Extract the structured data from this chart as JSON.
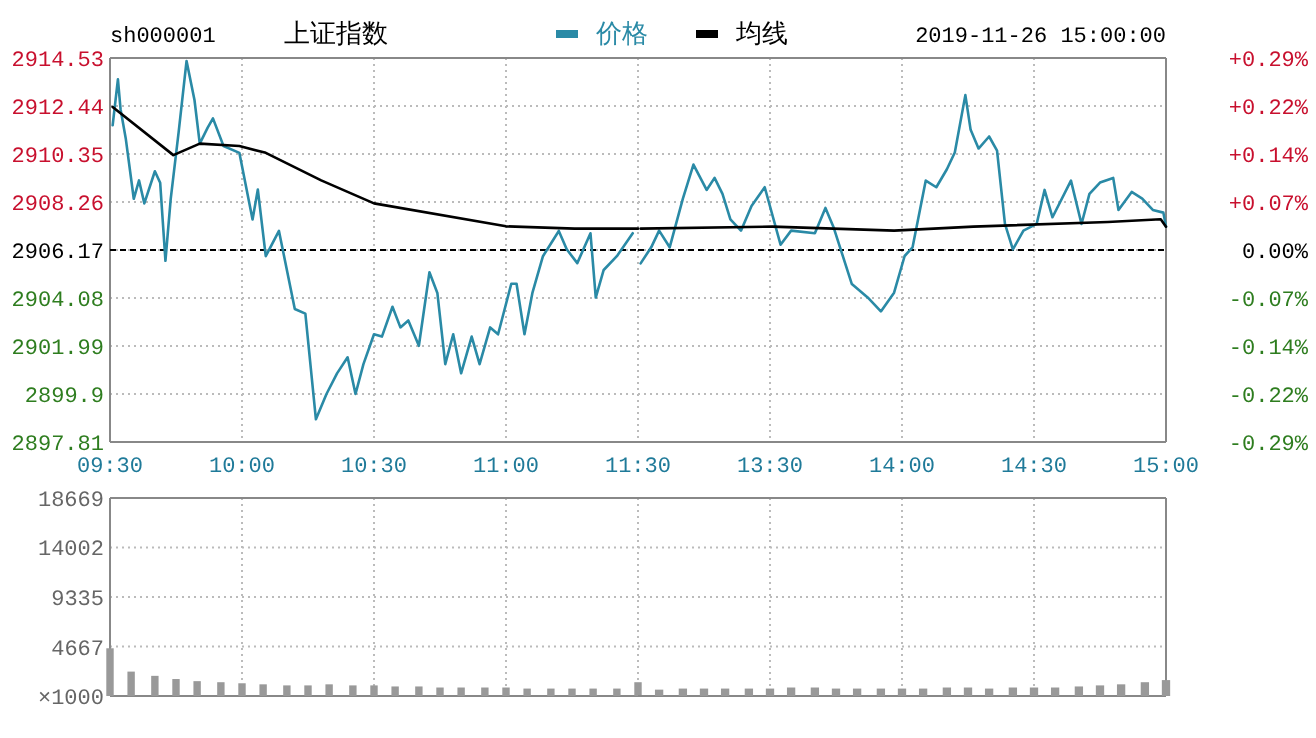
{
  "chart_data": [
    {
      "type": "line",
      "title": "上证指数",
      "subtitle": "sh000001",
      "legend": "top",
      "grid": true,
      "xlim": [
        9.5,
        11.5
      ],
      "xticks": [
        {
          "value": 9.5,
          "label": "09:30"
        },
        {
          "value": 10,
          "label": "10:00"
        },
        {
          "value": 10.5,
          "label": "10:30"
        },
        {
          "value": 11,
          "label": "11:00"
        },
        {
          "value": 11.5,
          "label": "11:30"
        }
      ],
      "ylim": [
        2897.81,
        2914.53
      ],
      "yticks": [
        2897.81,
        2899.9,
        2901.99,
        2904.08,
        2906.17,
        2908.26,
        2910.35,
        2912.44,
        2914.53
      ],
      "ref_lines": [
        {
          "axis": "y",
          "value": 2906.17,
          "color": "#000000",
          "line_style": "dashed"
        }
      ],
      "series": [
        {
          "name": "价格",
          "color": "#2a8aa6",
          "x": [
            9.51,
            9.53,
            9.54,
            9.56,
            9.59,
            9.61,
            9.63,
            9.67,
            9.69,
            9.71,
            9.73,
            9.76,
            9.79,
            9.82,
            9.84,
            9.87,
            9.89,
            9.93,
            9.99,
            10.04,
            10.06,
            10.09,
            10.14,
            10.2,
            10.24,
            10.28,
            10.32,
            10.36,
            10.4,
            10.43,
            10.46,
            10.5,
            10.53,
            10.57,
            10.6,
            10.63,
            10.67,
            10.71,
            10.74,
            10.77,
            10.8,
            10.83,
            10.87,
            10.9,
            10.94,
            10.97,
            11.02,
            11.04,
            11.07,
            11.1,
            11.14,
            11.2,
            11.23,
            11.27,
            11.32,
            11.34,
            11.37,
            11.42,
            11.48
          ],
          "values": [
            2911.6,
            2913.6,
            2912.3,
            2911.0,
            2908.4,
            2909.2,
            2908.2,
            2909.6,
            2909.1,
            2905.7,
            2908.4,
            2911.3,
            2914.4,
            2912.7,
            2910.8,
            2911.5,
            2911.9,
            2910.7,
            2910.4,
            2907.5,
            2908.8,
            2905.9,
            2907.0,
            2903.6,
            2903.4,
            2898.8,
            2899.9,
            2900.8,
            2901.5,
            2899.9,
            2901.2,
            2902.5,
            2902.4,
            2903.7,
            2902.8,
            2903.1,
            2902.0,
            2905.2,
            2904.3,
            2901.2,
            2902.5,
            2900.8,
            2902.4,
            2901.2,
            2902.8,
            2902.5,
            2904.7,
            2904.7,
            2902.5,
            2904.3,
            2905.9,
            2907.0,
            2906.2,
            2905.6,
            2906.9,
            2904.1,
            2905.3,
            2905.9,
            2906.9
          ]
        },
        {
          "name": "均线",
          "color": "#000000",
          "x": [
            9.51,
            9.74,
            9.84,
            9.99,
            10.09,
            10.3,
            10.5,
            11.0,
            11.26,
            11.5
          ],
          "values": [
            2912.4,
            2910.3,
            2910.8,
            2910.7,
            2910.4,
            2909.2,
            2908.2,
            2907.2,
            2907.1,
            2907.1
          ]
        }
      ]
    },
    {
      "type": "line",
      "annotations": [
        "2019-11-26 15:00:00"
      ],
      "grid": true,
      "xlim": [
        13,
        15
      ],
      "xticks": [
        {
          "value": 13.5,
          "label": "13:30"
        },
        {
          "value": 14,
          "label": "14:00"
        },
        {
          "value": 14.5,
          "label": "14:30"
        },
        {
          "value": 15,
          "label": "15:00"
        }
      ],
      "y2lim": [
        -0.2876,
        0.2876
      ],
      "y2ticks": [
        {
          "value": -0.2876,
          "label": "-0.29%"
        },
        {
          "value": -0.2157,
          "label": "-0.22%"
        },
        {
          "value": -0.1438,
          "label": "-0.14%"
        },
        {
          "value": -0.0719,
          "label": "-0.07%"
        },
        {
          "value": 0,
          "label": "0.00%"
        },
        {
          "value": 0.0719,
          "label": "+0.07%"
        },
        {
          "value": 0.1438,
          "label": "+0.14%"
        },
        {
          "value": 0.2157,
          "label": "+0.22%"
        },
        {
          "value": 0.2876,
          "label": "+0.29%"
        }
      ],
      "ref_lines": [
        {
          "axis": "y2",
          "value": 0,
          "color": "#000000",
          "line_style": "dashed"
        }
      ],
      "series": [
        {
          "color": "#2a8aa6",
          "axis": "y2",
          "x": [
            13.01,
            13.05,
            13.08,
            13.12,
            13.17,
            13.21,
            13.26,
            13.29,
            13.32,
            13.35,
            13.39,
            13.43,
            13.48,
            13.54,
            13.58,
            13.67,
            13.71,
            13.74,
            13.81,
            13.87,
            13.92,
            13.97,
            14.01,
            14.04,
            14.09,
            14.13,
            14.17,
            14.2,
            14.24,
            14.26,
            14.29,
            14.33,
            14.36,
            14.39,
            14.42,
            14.46,
            14.51,
            14.54,
            14.57,
            14.64,
            14.68,
            14.71,
            14.75,
            14.8,
            14.82,
            14.87,
            14.91,
            14.95,
            14.99,
            15
          ],
          "values": [
            -0.02,
            0.004,
            0.029,
            0.004,
            0.077,
            0.128,
            0.09,
            0.108,
            0.084,
            0.046,
            0.029,
            0.066,
            0.094,
            0.008,
            0.029,
            0.025,
            0.063,
            0.035,
            -0.051,
            -0.071,
            -0.092,
            -0.064,
            -0.009,
            0.004,
            0.104,
            0.094,
            0.121,
            0.146,
            0.232,
            0.18,
            0.152,
            0.17,
            0.149,
            0.039,
            0.001,
            0.029,
            0.039,
            0.09,
            0.049,
            0.104,
            0.039,
            0.084,
            0.101,
            0.108,
            0.06,
            0.087,
            0.077,
            0.06,
            0.056,
            0.035
          ]
        },
        {
          "color": "#000000",
          "axis": "y2",
          "x": [
            13.01,
            13.51,
            13.97,
            14.27,
            14.78,
            14.98,
            15
          ],
          "values": [
            0.032,
            0.035,
            0.029,
            0.035,
            0.042,
            0.046,
            0.035
          ]
        }
      ]
    },
    {
      "type": "bar",
      "grid": true,
      "tick_labels": "y",
      "color": "#999999",
      "ylabel": "×1000",
      "xlim": [
        9.5,
        11.5
      ],
      "xticks": [
        9.5,
        10,
        10.5,
        11,
        11.5
      ],
      "ylim": [
        0,
        18669
      ],
      "yticks": [
        {
          "value": 0,
          "label": null
        },
        4667,
        9335,
        14002,
        18669
      ],
      "x": [
        9.5,
        9.58,
        9.67,
        9.75,
        9.83,
        9.92,
        10,
        10.08,
        10.17,
        10.25,
        10.33,
        10.42,
        10.5,
        10.58,
        10.67,
        10.75,
        10.83,
        10.92,
        11,
        11.08,
        11.17,
        11.25,
        11.33,
        11.42,
        11.5
      ],
      "values": [
        4500,
        2300,
        1900,
        1600,
        1400,
        1300,
        1200,
        1100,
        1000,
        1000,
        1100,
        1000,
        1000,
        900,
        900,
        800,
        800,
        800,
        800,
        700,
        700,
        700,
        700,
        700,
        1300
      ]
    },
    {
      "type": "bar",
      "grid": true,
      "tick_labels": false,
      "color": "#999999",
      "xlim": [
        13,
        15
      ],
      "xticks": [
        13.5,
        14,
        14.5,
        15
      ],
      "ylim": [
        0,
        18669
      ],
      "yticks": [
        4667,
        9335,
        14002,
        18669
      ],
      "x": [
        13.08,
        13.17,
        13.25,
        13.33,
        13.42,
        13.5,
        13.58,
        13.67,
        13.75,
        13.83,
        13.92,
        14,
        14.08,
        14.17,
        14.25,
        14.33,
        14.42,
        14.5,
        14.58,
        14.67,
        14.75,
        14.83,
        14.92,
        15
      ],
      "values": [
        600,
        700,
        700,
        700,
        700,
        700,
        800,
        800,
        700,
        700,
        700,
        700,
        700,
        800,
        800,
        700,
        800,
        800,
        800,
        900,
        1000,
        1100,
        1300,
        1500
      ]
    }
  ]
}
